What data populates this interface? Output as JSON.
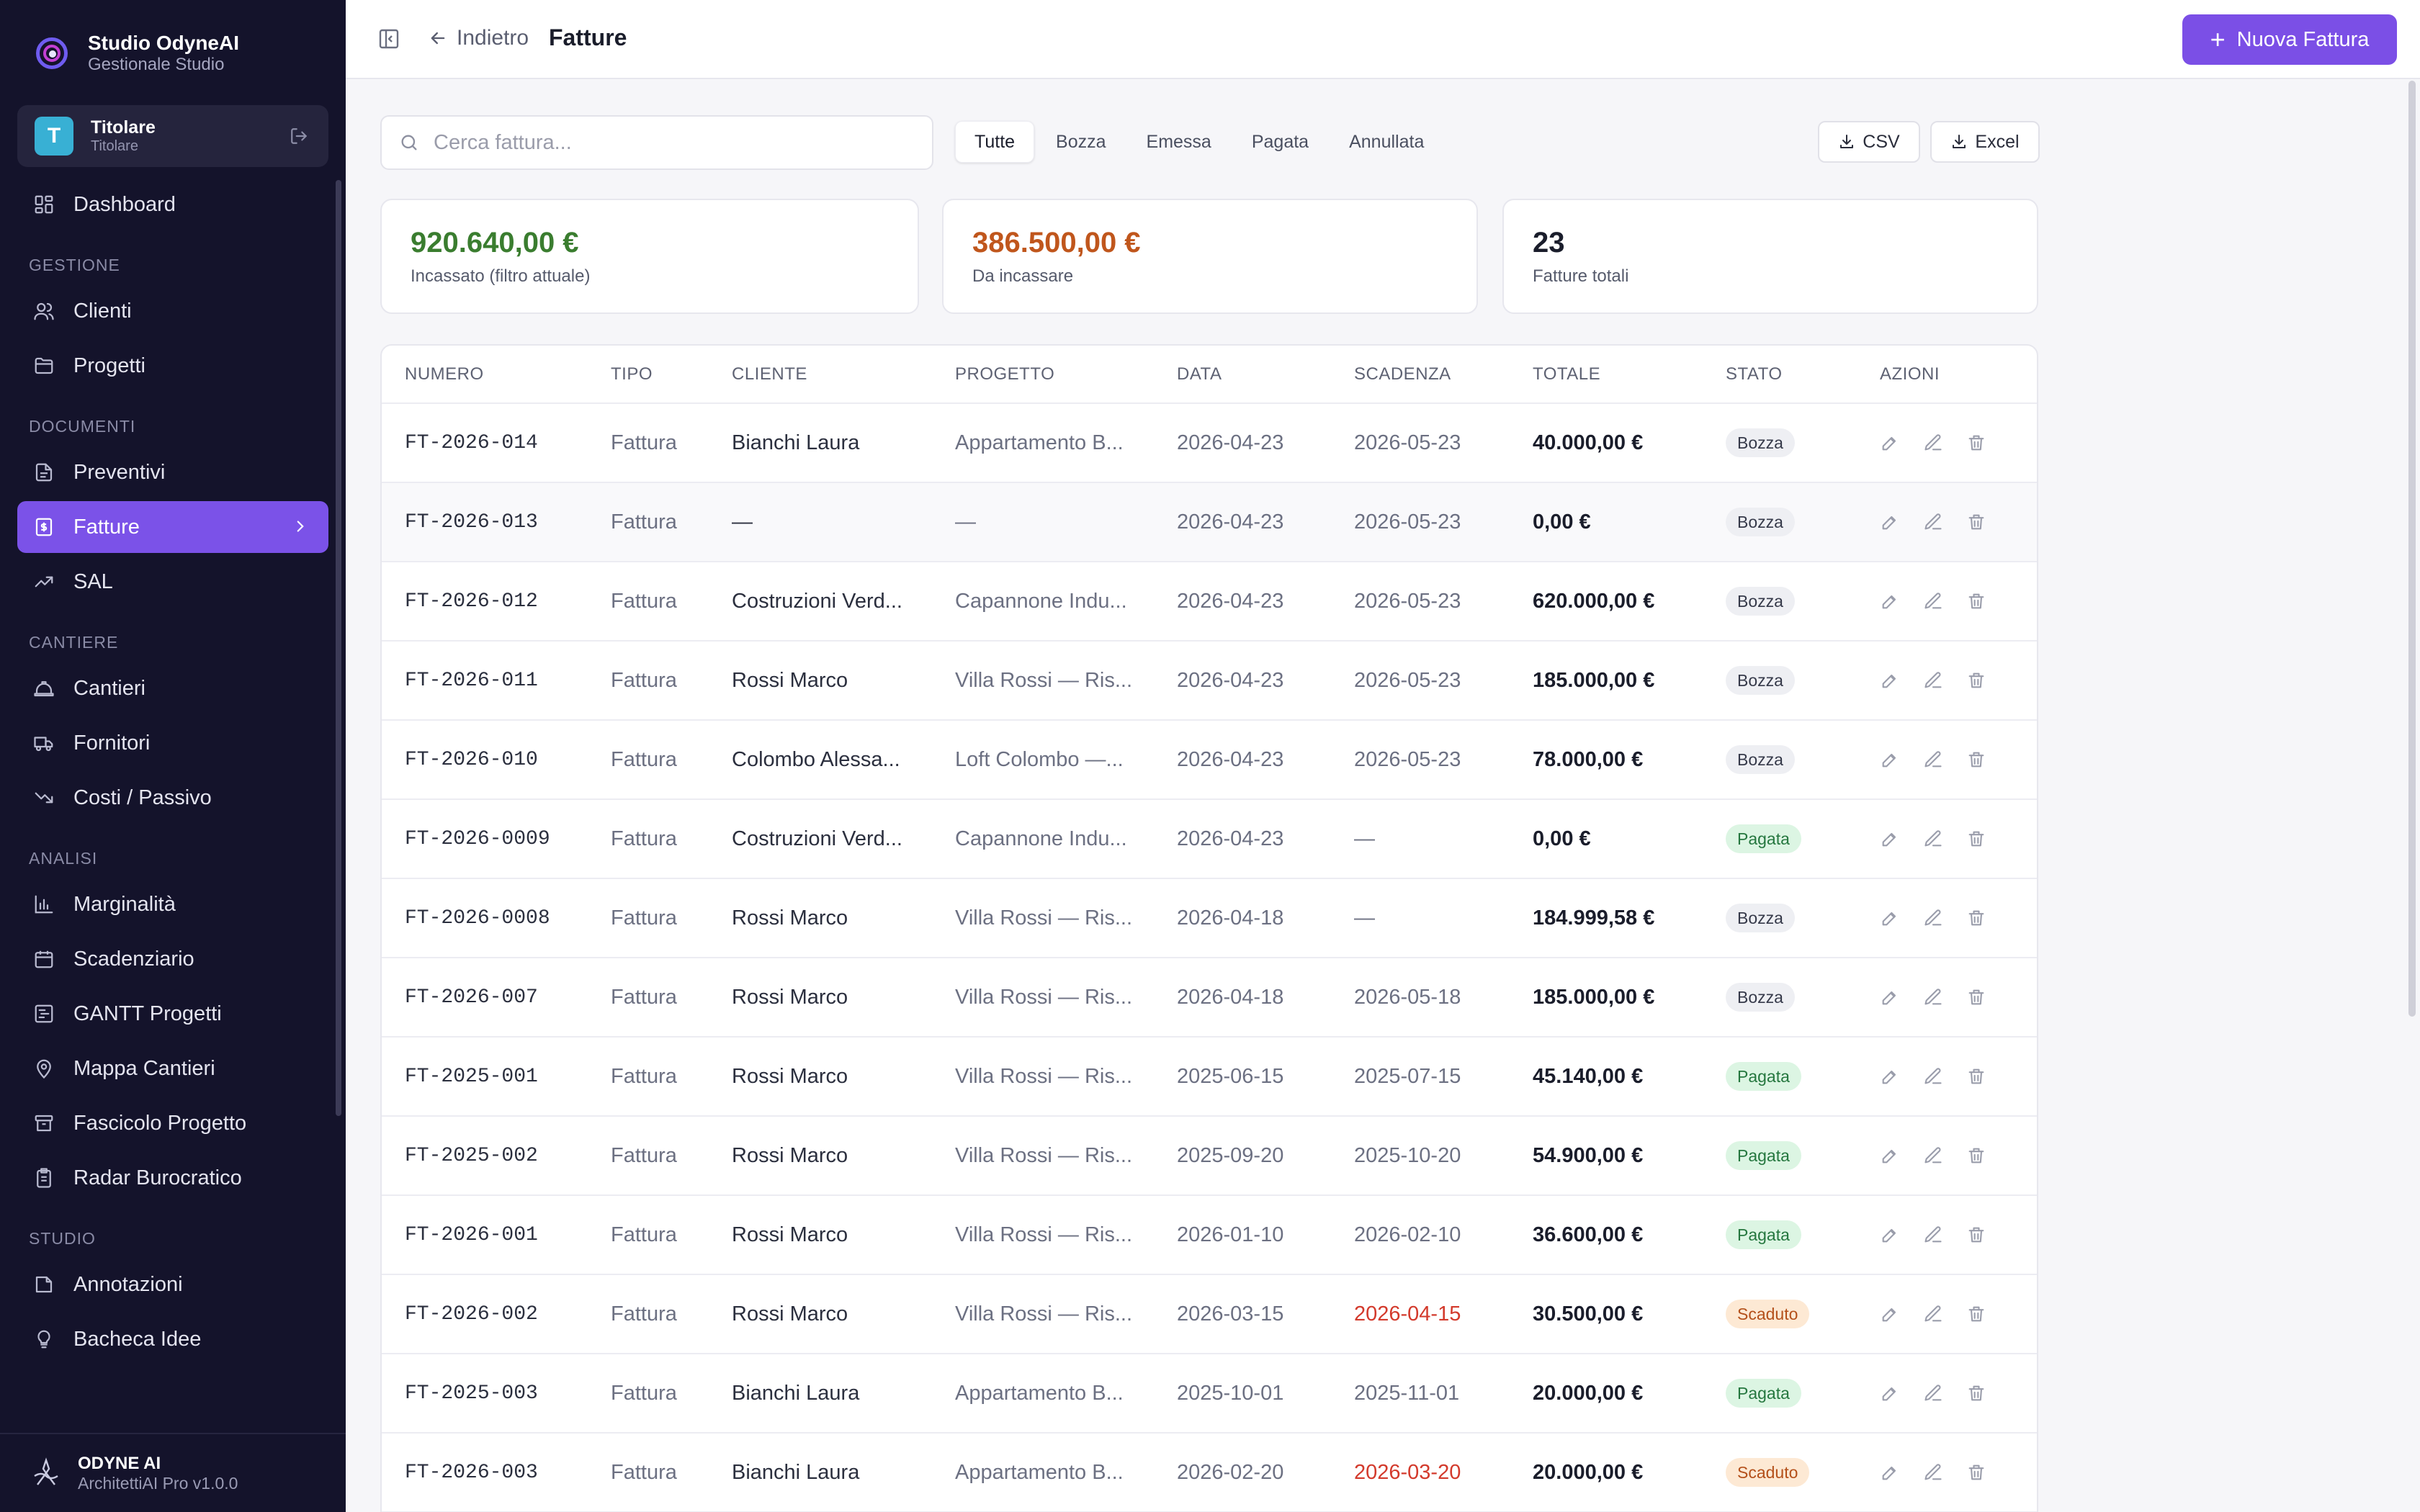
{
  "brand": {
    "name": "Studio OdyneAI",
    "subtitle": "Gestionale Studio"
  },
  "user": {
    "initial": "T",
    "name": "Titolare",
    "role": "Titolare"
  },
  "nav": {
    "dashboard": "Dashboard",
    "section_gestione": "GESTIONE",
    "clienti": "Clienti",
    "progetti": "Progetti",
    "section_documenti": "DOCUMENTI",
    "preventivi": "Preventivi",
    "fatture": "Fatture",
    "sal": "SAL",
    "section_cantiere": "CANTIERE",
    "cantieri": "Cantieri",
    "fornitori": "Fornitori",
    "costi": "Costi / Passivo",
    "section_analisi": "ANALISI",
    "marginalita": "Marginalità",
    "scadenziario": "Scadenziario",
    "gantt": "GANTT Progetti",
    "mappa": "Mappa Cantieri",
    "fascicolo": "Fascicolo Progetto",
    "radar": "Radar Burocratico",
    "section_studio": "STUDIO",
    "annotazioni": "Annotazioni",
    "bacheca": "Bacheca Idee"
  },
  "footer": {
    "name": "ODYNE AI",
    "version": "ArchitettiAI Pro v1.0.0"
  },
  "topbar": {
    "back": "Indietro",
    "title": "Fatture",
    "new_button": "Nuova Fattura"
  },
  "search": {
    "placeholder": "Cerca fattura...",
    "value": ""
  },
  "filters": [
    "Tutte",
    "Bozza",
    "Emessa",
    "Pagata",
    "Annullata"
  ],
  "export": {
    "csv": "CSV",
    "excel": "Excel"
  },
  "stats": {
    "incassato": {
      "value": "920.640,00 €",
      "label": "Incassato (filtro attuale)"
    },
    "da_incassare": {
      "value": "386.500,00 €",
      "label": "Da incassare"
    },
    "totali": {
      "value": "23",
      "label": "Fatture totali"
    }
  },
  "colors": {
    "accent": "#7b4fe6",
    "sidebar": "#14132b",
    "incassato": "#3a7d2f",
    "da_incassare": "#c0561c",
    "overdue": "#d33a2c"
  },
  "table": {
    "headers": [
      "NUMERO",
      "TIPO",
      "CLIENTE",
      "PROGETTO",
      "DATA",
      "SCADENZA",
      "TOTALE",
      "STATO",
      "AZIONI"
    ],
    "rows": [
      {
        "numero": "FT-2026-014",
        "tipo": "Fattura",
        "cliente": "Bianchi Laura",
        "progetto": "Appartamento B...",
        "data": "2026-04-23",
        "scadenza": "2026-05-23",
        "totale": "40.000,00 €",
        "stato": "Bozza"
      },
      {
        "numero": "FT-2026-013",
        "tipo": "Fattura",
        "cliente": "—",
        "progetto": "—",
        "data": "2026-04-23",
        "scadenza": "2026-05-23",
        "totale": "0,00 €",
        "stato": "Bozza"
      },
      {
        "numero": "FT-2026-012",
        "tipo": "Fattura",
        "cliente": "Costruzioni Verd...",
        "progetto": "Capannone Indu...",
        "data": "2026-04-23",
        "scadenza": "2026-05-23",
        "totale": "620.000,00 €",
        "stato": "Bozza"
      },
      {
        "numero": "FT-2026-011",
        "tipo": "Fattura",
        "cliente": "Rossi Marco",
        "progetto": "Villa Rossi — Ris...",
        "data": "2026-04-23",
        "scadenza": "2026-05-23",
        "totale": "185.000,00 €",
        "stato": "Bozza"
      },
      {
        "numero": "FT-2026-010",
        "tipo": "Fattura",
        "cliente": "Colombo Alessa...",
        "progetto": "Loft Colombo —...",
        "data": "2026-04-23",
        "scadenza": "2026-05-23",
        "totale": "78.000,00 €",
        "stato": "Bozza"
      },
      {
        "numero": "FT-2026-0009",
        "tipo": "Fattura",
        "cliente": "Costruzioni Verd...",
        "progetto": "Capannone Indu...",
        "data": "2026-04-23",
        "scadenza": "—",
        "totale": "0,00 €",
        "stato": "Pagata"
      },
      {
        "numero": "FT-2026-0008",
        "tipo": "Fattura",
        "cliente": "Rossi Marco",
        "progetto": "Villa Rossi — Ris...",
        "data": "2026-04-18",
        "scadenza": "—",
        "totale": "184.999,58 €",
        "stato": "Bozza"
      },
      {
        "numero": "FT-2026-007",
        "tipo": "Fattura",
        "cliente": "Rossi Marco",
        "progetto": "Villa Rossi — Ris...",
        "data": "2026-04-18",
        "scadenza": "2026-05-18",
        "totale": "185.000,00 €",
        "stato": "Bozza"
      },
      {
        "numero": "FT-2025-001",
        "tipo": "Fattura",
        "cliente": "Rossi Marco",
        "progetto": "Villa Rossi — Ris...",
        "data": "2025-06-15",
        "scadenza": "2025-07-15",
        "totale": "45.140,00 €",
        "stato": "Pagata"
      },
      {
        "numero": "FT-2025-002",
        "tipo": "Fattura",
        "cliente": "Rossi Marco",
        "progetto": "Villa Rossi — Ris...",
        "data": "2025-09-20",
        "scadenza": "2025-10-20",
        "totale": "54.900,00 €",
        "stato": "Pagata"
      },
      {
        "numero": "FT-2026-001",
        "tipo": "Fattura",
        "cliente": "Rossi Marco",
        "progetto": "Villa Rossi — Ris...",
        "data": "2026-01-10",
        "scadenza": "2026-02-10",
        "totale": "36.600,00 €",
        "stato": "Pagata"
      },
      {
        "numero": "FT-2026-002",
        "tipo": "Fattura",
        "cliente": "Rossi Marco",
        "progetto": "Villa Rossi — Ris...",
        "data": "2026-03-15",
        "scadenza": "2026-04-15",
        "totale": "30.500,00 €",
        "stato": "Scaduto"
      },
      {
        "numero": "FT-2025-003",
        "tipo": "Fattura",
        "cliente": "Bianchi Laura",
        "progetto": "Appartamento B...",
        "data": "2025-10-01",
        "scadenza": "2025-11-01",
        "totale": "20.000,00 €",
        "stato": "Pagata"
      },
      {
        "numero": "FT-2026-003",
        "tipo": "Fattura",
        "cliente": "Bianchi Laura",
        "progetto": "Appartamento B...",
        "data": "2026-02-20",
        "scadenza": "2026-03-20",
        "totale": "20.000,00 €",
        "stato": "Scaduto"
      }
    ]
  }
}
